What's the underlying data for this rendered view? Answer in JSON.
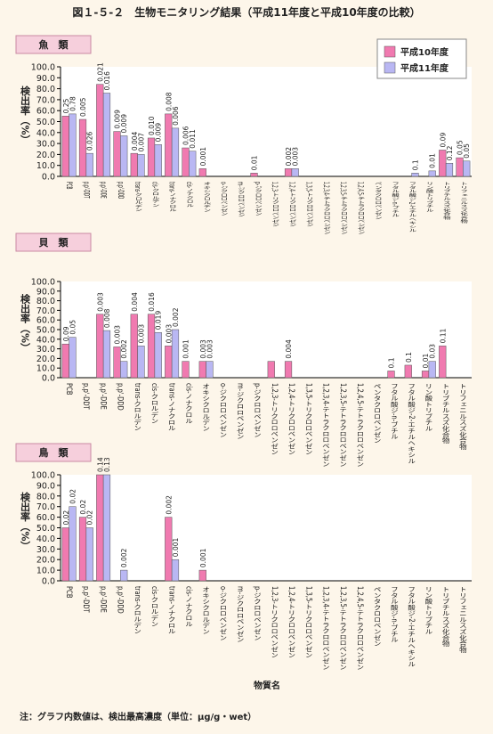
{
  "title": "図１-５-２　生物モニタリング結果（平成11年度と平成10年度の比較）",
  "x_label": "物質名",
  "note": "注：グラフ内数値は、検出最高濃度（単位：μg/g・wet）",
  "chart_data": [
    {
      "type": "bar",
      "title": "魚　類",
      "y_label": "検出率（%）",
      "legend": "top-right",
      "categories": [
        "PCB",
        "p,p'-DDT",
        "p,p'-DDE",
        "p,p'-DDD",
        "trans-クロルデン",
        "cis-クロルデン",
        "trans-ノナクロル",
        "cis-ノナクロル",
        "オキシクロルデン",
        "o-ジクロロベンゼン",
        "m-ジクロロベンゼン",
        "p-ジクロロベンゼン",
        "1,2,3-トリクロロベンゼン",
        "1,2,4-トリクロロベンゼン",
        "1,3,5-トリクロロベンゼン",
        "1,2,3,4-テトラクロロベンゼン",
        "1,2,3,5-テトラクロロベンゼン",
        "1,2,4,5-テトラクロロベンゼン",
        "ペンタクロロベンゼン",
        "フタル酸ジ-n-ブチル",
        "フタル酸ジ-2-エチルヘキシル",
        "リン酸トリブチル",
        "トリブチルスズ化合物",
        "トリフェニルスズ化合物"
      ],
      "series": [
        {
          "name": "平成10年度",
          "color": "#f07ab0",
          "values": [
            55,
            52,
            84,
            41,
            21,
            35,
            57,
            26,
            7,
            null,
            null,
            3,
            null,
            7,
            null,
            null,
            null,
            null,
            null,
            null,
            null,
            null,
            24,
            17
          ],
          "labels": [
            "0.25",
            "0.005",
            "0.021",
            "0.009",
            "0.004",
            "0.010",
            "0.008",
            "0.006",
            "0.001",
            null,
            null,
            "0.01",
            null,
            "0.002",
            null,
            null,
            null,
            null,
            null,
            null,
            null,
            null,
            "0.09",
            "0.05"
          ]
        },
        {
          "name": "平成11年度",
          "color": "#b9b7f3",
          "values": [
            57,
            21,
            76,
            37,
            20,
            29,
            44,
            23,
            null,
            null,
            null,
            null,
            null,
            7,
            null,
            null,
            null,
            null,
            null,
            null,
            3,
            5,
            12,
            14
          ],
          "labels": [
            "0.78",
            "0.026",
            "0.016",
            "0.009",
            "0.007",
            "0.009",
            "0.006",
            "0.011",
            null,
            null,
            null,
            null,
            null,
            "0.003",
            null,
            null,
            null,
            null,
            null,
            null,
            "0.1",
            "0.01",
            "0.12",
            "0.05"
          ]
        }
      ],
      "ylim": [
        0,
        100
      ],
      "yticks": [
        {
          "value": 0,
          "label": "0.0"
        },
        {
          "value": 10,
          "label": "10.0"
        },
        {
          "value": 20,
          "label": "20.0"
        },
        {
          "value": 30,
          "label": "30.0"
        },
        {
          "value": 40,
          "label": "40.0"
        },
        {
          "value": 50,
          "label": "50.0"
        },
        {
          "value": 60,
          "label": "60.0"
        },
        {
          "value": 70,
          "label": "70.0"
        },
        {
          "value": 80,
          "label": "80.0"
        },
        {
          "value": 90,
          "label": "90.0"
        },
        {
          "value": 100,
          "label": "100.0"
        }
      ]
    },
    {
      "type": "bar",
      "title": "貝　類",
      "y_label": "検出率（%）",
      "categories": [
        "PCB",
        "p,p'-DDT",
        "p,p'-DDE",
        "p,p'-DDD",
        "trans-クロルデン",
        "cis-クロルデン",
        "trans-ノナクロル",
        "cis-ノナクロル",
        "オキシクロルデン",
        "o-ジクロロベンゼン",
        "m-ジクロロベンゼン",
        "p-ジクロロベンゼン",
        "1,2,3-トリクロロベンゼン",
        "1,2,4-トリクロロベンゼン",
        "1,3,5-トリクロロベンゼン",
        "1,2,3,4-テトラクロロベンゼン",
        "1,2,3,5-テトラクロロベンゼン",
        "1,2,4,5-テトラクロロベンゼン",
        "ペンタクロロベンゼン",
        "フタル酸ジ-n-ブチル",
        "フタル酸ジ-2-エチルヘキシル",
        "リン酸トリブチル",
        "トリブチルスズ化合物",
        "トリフェニルスズ化合物"
      ],
      "series": [
        {
          "color": "#f07ab0",
          "values": [
            35,
            null,
            66,
            32,
            66,
            66,
            33,
            17,
            17,
            null,
            null,
            null,
            17,
            17,
            null,
            null,
            null,
            null,
            null,
            7,
            13,
            7,
            33,
            null
          ],
          "labels": [
            "0.09",
            null,
            "0.003",
            "0.003",
            "0.004",
            "0.016",
            "0.003",
            "0.001",
            "0.003",
            null,
            null,
            null,
            null,
            "0.004",
            null,
            null,
            null,
            null,
            null,
            "0.1",
            "0.1",
            "0.01",
            "0.11",
            null
          ]
        },
        {
          "color": "#b9b7f3",
          "values": [
            42,
            null,
            49,
            17,
            33,
            47,
            50,
            null,
            17,
            null,
            null,
            null,
            null,
            null,
            null,
            null,
            null,
            null,
            null,
            null,
            null,
            17,
            null,
            null
          ],
          "labels": [
            "0.05",
            null,
            "0.008",
            "0.002",
            "0.003",
            "0.019",
            "0.002",
            null,
            "0.003",
            null,
            null,
            null,
            null,
            null,
            null,
            null,
            null,
            null,
            null,
            null,
            null,
            "0.03",
            null,
            null
          ]
        }
      ],
      "ylim": [
        0,
        100
      ],
      "yticks": [
        {
          "value": 0,
          "label": "0.0"
        },
        {
          "value": 10,
          "label": "10.0"
        },
        {
          "value": 20,
          "label": "20.0"
        },
        {
          "value": 30,
          "label": "30.0"
        },
        {
          "value": 40,
          "label": "40.0"
        },
        {
          "value": 50,
          "label": "50.0"
        },
        {
          "value": 60,
          "label": "60.0"
        },
        {
          "value": 70,
          "label": "70.0"
        },
        {
          "value": 80,
          "label": "80.0"
        },
        {
          "value": 90,
          "label": "90.0"
        },
        {
          "value": 100,
          "label": "100.0"
        }
      ]
    },
    {
      "type": "bar",
      "title": "鳥　類",
      "y_label": "検出率（%）",
      "categories": [
        "PCB",
        "p,p'-DDT",
        "p,p'-DDE",
        "p,p'-DDD",
        "trans-クロルデン",
        "cis-クロルデン",
        "trans-ノナクロル",
        "cis-ノナクロル",
        "オキシクロルデン",
        "o-ジクロロベンゼン",
        "m-ジクロロベンゼン",
        "p-ジクロロベンゼン",
        "1,2,3-トリクロロベンゼン",
        "1,2,4-トリクロロベンゼン",
        "1,3,5-トリクロロベンゼン",
        "1,2,3,4-テトラクロロベンゼン",
        "1,2,3,5-テトラクロロベンゼン",
        "1,2,4,5-テトラクロロベンゼン",
        "ペンタクロロベンゼン",
        "フタル酸ジ-n-ブチル",
        "フタル酸ジ-2-エチルヘキシル",
        "リン酸トリブチル",
        "トリブチルスズ化合物",
        "トリフェニルスズ化合物"
      ],
      "series": [
        {
          "color": "#f07ab0",
          "values": [
            50,
            60,
            100,
            null,
            null,
            null,
            60,
            null,
            10,
            null,
            null,
            null,
            null,
            null,
            null,
            null,
            null,
            null,
            null,
            null,
            null,
            null,
            null,
            null
          ],
          "labels": [
            "0.02",
            "0.02",
            "0.14",
            null,
            null,
            null,
            "0.002",
            null,
            "0.001",
            null,
            null,
            null,
            null,
            null,
            null,
            null,
            null,
            null,
            null,
            null,
            null,
            null,
            null,
            null
          ]
        },
        {
          "color": "#b9b7f3",
          "values": [
            70,
            50,
            100,
            10,
            null,
            null,
            20,
            null,
            null,
            null,
            null,
            null,
            null,
            null,
            null,
            null,
            null,
            null,
            null,
            null,
            null,
            null,
            null,
            null
          ],
          "labels": [
            "0.02",
            "0.02",
            "0.13",
            "0.002",
            null,
            null,
            "0.001",
            null,
            null,
            null,
            null,
            null,
            null,
            null,
            null,
            null,
            null,
            null,
            null,
            null,
            null,
            null,
            null,
            null
          ]
        }
      ],
      "ylim": [
        0,
        100
      ],
      "yticks": [
        {
          "value": 0,
          "label": "0.0"
        },
        {
          "value": 10,
          "label": "10.0"
        },
        {
          "value": 20,
          "label": "20.0"
        },
        {
          "value": 30,
          "label": "30.0"
        },
        {
          "value": 40,
          "label": "40.0"
        },
        {
          "value": 50,
          "label": "50.0"
        },
        {
          "value": 60,
          "label": "60.0"
        },
        {
          "value": 70,
          "label": "70.0"
        },
        {
          "value": 80,
          "label": "80.0"
        },
        {
          "value": 90,
          "label": "90.0"
        },
        {
          "value": 100,
          "label": "100.0"
        }
      ]
    }
  ]
}
